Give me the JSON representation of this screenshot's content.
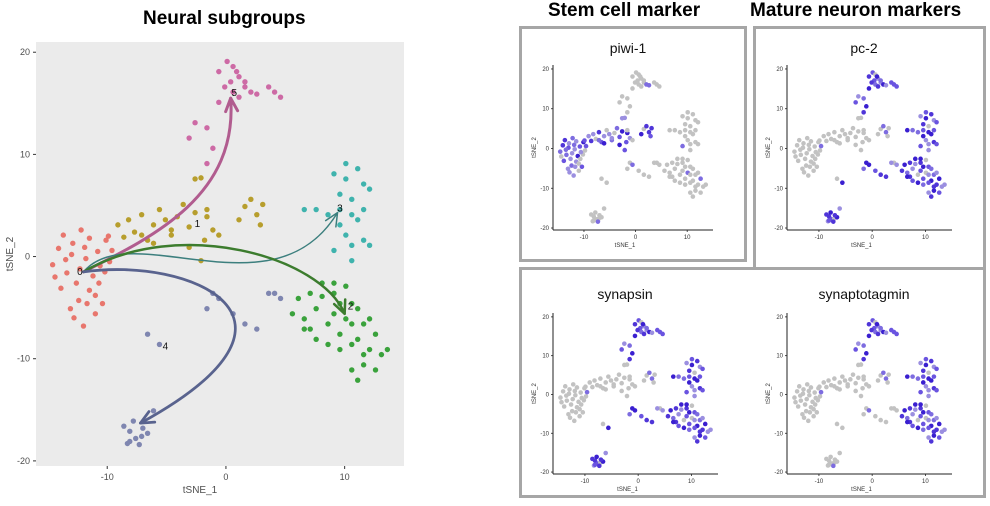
{
  "headings": {
    "left": "Neural subgroups",
    "stem": "Stem cell marker",
    "mature": "Mature neuron markers"
  },
  "colors": {
    "frame": "#a6a6a6",
    "panel_bg": "#ebebeb",
    "grey_cell": "#c2c2c2",
    "cluster_0": "#e8766d",
    "cluster_1": "#b79e2d",
    "cluster_2": "#3aa23c",
    "cluster_3": "#3fb3ad",
    "cluster_4": "#7f86b0",
    "cluster_5": "#cd6aa5",
    "arrow_5": "#b15c8f",
    "arrow_3": "#3c7f7e",
    "arrow_2": "#3c7c2e",
    "arrow_4": "#59638e"
  },
  "chart_data": [
    {
      "type": "scatter",
      "title": "Neural subgroups",
      "xlabel": "tSNE_1",
      "ylabel": "tSNE_2",
      "xlim": [
        -16,
        15
      ],
      "ylim": [
        -20.5,
        21
      ],
      "xticks": [
        "-10",
        "0",
        "10"
      ],
      "yticks": [
        "20",
        "10",
        "0",
        "-10",
        "-20"
      ],
      "cluster_labels": [
        "0",
        "1",
        "2",
        "3",
        "4",
        "5"
      ],
      "series": [
        {
          "name": "0",
          "points": [
            [
              -14.6,
              -0.8
            ],
            [
              -14.1,
              0.8
            ],
            [
              -13.7,
              2.1
            ],
            [
              -13.4,
              -1.6
            ],
            [
              -13.0,
              0.2
            ],
            [
              -12.6,
              -2.6
            ],
            [
              -12.3,
              -1.2
            ],
            [
              -11.9,
              0.9
            ],
            [
              -11.5,
              -3.3
            ],
            [
              -11.2,
              -1.9
            ],
            [
              -10.8,
              0.5
            ],
            [
              -10.4,
              -4.6
            ],
            [
              -10.1,
              1.6
            ],
            [
              -13.9,
              -3.1
            ],
            [
              -12.4,
              -4.3
            ],
            [
              -11.0,
              -5.6
            ],
            [
              -12.8,
              -6.0
            ],
            [
              -12.0,
              -6.8
            ],
            [
              -11.5,
              1.8
            ],
            [
              -9.8,
              -0.5
            ],
            [
              -10.7,
              -2.6
            ],
            [
              -13.1,
              -5.1
            ],
            [
              -11.7,
              -4.6
            ],
            [
              -14.4,
              -2.0
            ],
            [
              -12.2,
              2.6
            ],
            [
              -11.0,
              -3.8
            ],
            [
              -10.2,
              -1.5
            ],
            [
              -13.5,
              -0.3
            ],
            [
              -9.6,
              0.6
            ],
            [
              -12.9,
              1.3
            ],
            [
              -11.8,
              -0.2
            ],
            [
              -10.6,
              -0.9
            ],
            [
              -9.9,
              2.0
            ]
          ]
        },
        {
          "name": "1",
          "points": [
            [
              -9.1,
              3.1
            ],
            [
              -8.6,
              1.9
            ],
            [
              -8.2,
              3.6
            ],
            [
              -7.7,
              2.4
            ],
            [
              -7.1,
              4.1
            ],
            [
              -6.6,
              1.6
            ],
            [
              -6.1,
              3.1
            ],
            [
              -5.6,
              4.6
            ],
            [
              -5.1,
              3.6
            ],
            [
              -4.6,
              2.1
            ],
            [
              -4.1,
              3.9
            ],
            [
              -3.6,
              5.1
            ],
            [
              -3.1,
              2.9
            ],
            [
              -2.6,
              4.3
            ],
            [
              -1.6,
              3.9
            ],
            [
              -1.1,
              2.6
            ],
            [
              1.6,
              4.9
            ],
            [
              2.1,
              5.6
            ],
            [
              2.6,
              4.1
            ],
            [
              3.1,
              5.1
            ],
            [
              1.1,
              3.6
            ],
            [
              -2.1,
              7.7
            ],
            [
              -2.6,
              7.6
            ],
            [
              -1.8,
              1.6
            ],
            [
              -7.1,
              2.1
            ],
            [
              -6.1,
              1.3
            ],
            [
              -4.6,
              2.6
            ],
            [
              -0.6,
              2.1
            ],
            [
              -2.1,
              -0.4
            ],
            [
              -3.1,
              0.9
            ],
            [
              -1.6,
              4.6
            ],
            [
              2.9,
              3.1
            ]
          ]
        },
        {
          "name": "2",
          "points": [
            [
              5.6,
              -5.6
            ],
            [
              6.1,
              -4.1
            ],
            [
              6.6,
              -6.1
            ],
            [
              7.1,
              -7.1
            ],
            [
              7.6,
              -5.1
            ],
            [
              8.1,
              -3.9
            ],
            [
              8.6,
              -6.6
            ],
            [
              9.1,
              -5.6
            ],
            [
              9.6,
              -7.6
            ],
            [
              10.1,
              -6.1
            ],
            [
              10.6,
              -4.6
            ],
            [
              11.1,
              -8.1
            ],
            [
              11.6,
              -6.6
            ],
            [
              12.1,
              -9.1
            ],
            [
              12.6,
              -7.6
            ],
            [
              13.1,
              -9.6
            ],
            [
              13.6,
              -9.1
            ],
            [
              9.1,
              -3.6
            ],
            [
              10.1,
              -2.9
            ],
            [
              11.1,
              -5.1
            ],
            [
              8.6,
              -8.6
            ],
            [
              9.6,
              -9.1
            ],
            [
              10.6,
              -8.6
            ],
            [
              11.6,
              -10.6
            ],
            [
              11.1,
              -12.1
            ],
            [
              10.6,
              -11.1
            ],
            [
              7.6,
              -8.1
            ],
            [
              6.6,
              -7.1
            ],
            [
              12.1,
              -6.1
            ],
            [
              8.1,
              -2.6
            ],
            [
              9.6,
              -4.6
            ],
            [
              10.6,
              -6.6
            ],
            [
              12.6,
              -11.1
            ],
            [
              11.6,
              -9.6
            ],
            [
              7.1,
              -3.6
            ],
            [
              9.1,
              -2.6
            ]
          ]
        },
        {
          "name": "3",
          "points": [
            [
              9.1,
              8.1
            ],
            [
              9.6,
              6.1
            ],
            [
              10.1,
              7.6
            ],
            [
              10.6,
              5.6
            ],
            [
              11.1,
              8.6
            ],
            [
              11.6,
              4.6
            ],
            [
              9.6,
              3.1
            ],
            [
              10.1,
              2.1
            ],
            [
              10.6,
              1.1
            ],
            [
              11.6,
              1.6
            ],
            [
              12.1,
              1.1
            ],
            [
              10.6,
              4.1
            ],
            [
              11.1,
              3.6
            ],
            [
              9.6,
              4.6
            ],
            [
              8.6,
              4.1
            ],
            [
              7.6,
              4.6
            ],
            [
              6.6,
              4.6
            ],
            [
              10.1,
              9.1
            ],
            [
              11.6,
              7.1
            ],
            [
              12.1,
              6.6
            ],
            [
              10.6,
              -0.4
            ],
            [
              9.1,
              0.6
            ]
          ]
        },
        {
          "name": "4",
          "points": [
            [
              -8.6,
              -16.6
            ],
            [
              -8.1,
              -17.1
            ],
            [
              -7.6,
              -17.8
            ],
            [
              -7.1,
              -17.6
            ],
            [
              -8.3,
              -18.3
            ],
            [
              -7.3,
              -18.4
            ],
            [
              -6.6,
              -17.3
            ],
            [
              -7.8,
              -16.1
            ],
            [
              -8.1,
              -18.1
            ],
            [
              -7.0,
              -16.8
            ],
            [
              -6.1,
              -15.1
            ],
            [
              -6.6,
              -7.6
            ],
            [
              -5.6,
              -8.6
            ],
            [
              -1.6,
              -5.1
            ],
            [
              -1.1,
              -3.6
            ],
            [
              0.6,
              -5.6
            ],
            [
              2.6,
              -7.1
            ],
            [
              4.1,
              -3.6
            ],
            [
              4.6,
              -4.1
            ],
            [
              3.6,
              -3.6
            ],
            [
              -0.6,
              -4.1
            ],
            [
              1.6,
              -6.6
            ]
          ]
        },
        {
          "name": "5",
          "points": [
            [
              0.1,
              19.1
            ],
            [
              0.6,
              18.6
            ],
            [
              -0.6,
              18.1
            ],
            [
              1.1,
              17.6
            ],
            [
              0.4,
              17.1
            ],
            [
              1.6,
              16.6
            ],
            [
              2.1,
              16.1
            ],
            [
              -0.1,
              16.6
            ],
            [
              0.6,
              16.1
            ],
            [
              1.1,
              15.6
            ],
            [
              2.6,
              15.9
            ],
            [
              3.6,
              16.6
            ],
            [
              4.6,
              15.6
            ],
            [
              -2.6,
              13.1
            ],
            [
              -3.1,
              11.6
            ],
            [
              -1.6,
              12.6
            ],
            [
              -1.1,
              10.6
            ],
            [
              -1.6,
              9.1
            ],
            [
              1.6,
              17.1
            ],
            [
              -0.6,
              15.1
            ],
            [
              0.9,
              18.1
            ],
            [
              4.1,
              16.1
            ]
          ]
        }
      ],
      "trajectories": [
        {
          "from": "0",
          "to": "5"
        },
        {
          "from": "0",
          "to": "3"
        },
        {
          "from": "0",
          "to": "2"
        },
        {
          "from": "0",
          "to": "4"
        }
      ]
    },
    {
      "type": "scatter",
      "title": "piwi-1",
      "xlabel": "tSNE_1",
      "ylabel": "tSNE_2",
      "xlim": [
        -16,
        15
      ],
      "ylim": [
        -20.5,
        21
      ],
      "xticks": [
        "-10",
        "0",
        "10"
      ],
      "yticks": [
        "20",
        "10",
        "0",
        "-10",
        "-20"
      ],
      "expression_high": [
        "0",
        "1"
      ]
    },
    {
      "type": "scatter",
      "title": "pc-2",
      "xlabel": "tSNE_1",
      "ylabel": "tSNE_2",
      "xlim": [
        -16,
        15
      ],
      "ylim": [
        -20.5,
        21
      ],
      "xticks": [
        "-10",
        "0",
        "10"
      ],
      "yticks": [
        "20",
        "10",
        "0",
        "-10",
        "-20"
      ],
      "expression_high": [
        "2",
        "3",
        "4",
        "5"
      ]
    },
    {
      "type": "scatter",
      "title": "synapsin",
      "xlabel": "tSNE_1",
      "ylabel": "tSNE_2",
      "xlim": [
        -16,
        15
      ],
      "ylim": [
        -20.5,
        21
      ],
      "xticks": [
        "-10",
        "0",
        "10"
      ],
      "yticks": [
        "20",
        "10",
        "0",
        "-10",
        "-20"
      ],
      "expression_high": [
        "2",
        "3",
        "4",
        "5"
      ]
    },
    {
      "type": "scatter",
      "title": "synaptotagmin",
      "xlabel": "tSNE_1",
      "ylabel": "tSNE_2",
      "xlim": [
        -16,
        15
      ],
      "ylim": [
        -20.5,
        21
      ],
      "xticks": [
        "-10",
        "0",
        "10"
      ],
      "yticks": [
        "20",
        "10",
        "0",
        "-10",
        "-20"
      ],
      "expression_high": [
        "2",
        "3",
        "5"
      ]
    }
  ]
}
